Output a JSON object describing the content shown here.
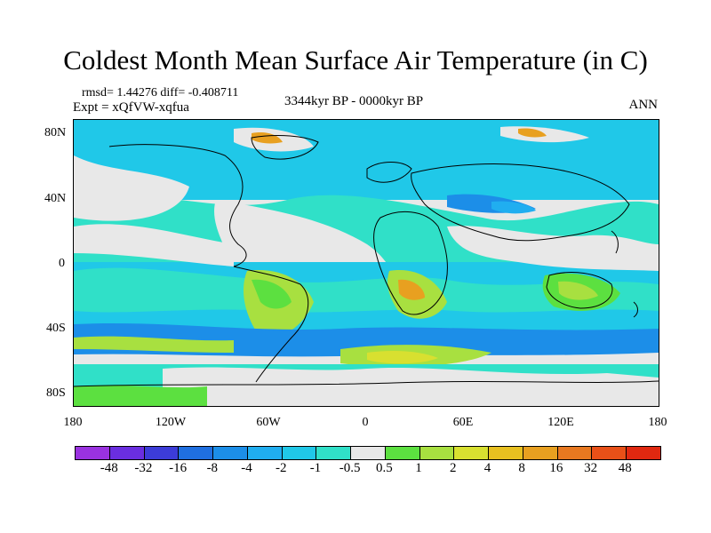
{
  "title": "Coldest Month Mean Surface Air Temperature (in C)",
  "stats": "rmsd= 1.44276 diff= -0.408711",
  "expt": "Expt = xQfVW-xqfua",
  "period": "3344kyr BP - 0000kyr BP",
  "season": "ANN",
  "lat_ticks": [
    "80N",
    "40N",
    "0",
    "40S",
    "80S"
  ],
  "lon_ticks": [
    "180",
    "120W",
    "60W",
    "0",
    "60E",
    "120E",
    "180"
  ],
  "colorbar": {
    "colors": [
      "#9a32e0",
      "#6a2ee0",
      "#3c3cd8",
      "#1f6fe0",
      "#1c8ee8",
      "#20aef0",
      "#20c8e8",
      "#30e0c8",
      "#e8e8e8",
      "#5ce040",
      "#a8e040",
      "#d8e030",
      "#e8c020",
      "#e8a020",
      "#e87820",
      "#e85018",
      "#e02810"
    ],
    "labels": [
      "-48",
      "-32",
      "-16",
      "-8",
      "-4",
      "-2",
      "-1",
      "-0.5",
      "0.5",
      "1",
      "2",
      "4",
      "8",
      "16",
      "32",
      "48"
    ]
  },
  "map_colors": {
    "background": "#e8e8e8",
    "blue_light": "#20c8e8",
    "blue_mid": "#20aef0",
    "blue_dark": "#1c8ee8",
    "cyan_green": "#30e0c8",
    "green": "#5ce040",
    "yellow_green": "#a8e040",
    "yellow": "#d8e030",
    "orange": "#e8a020",
    "red_orange": "#e87820",
    "coastline": "#000000"
  }
}
